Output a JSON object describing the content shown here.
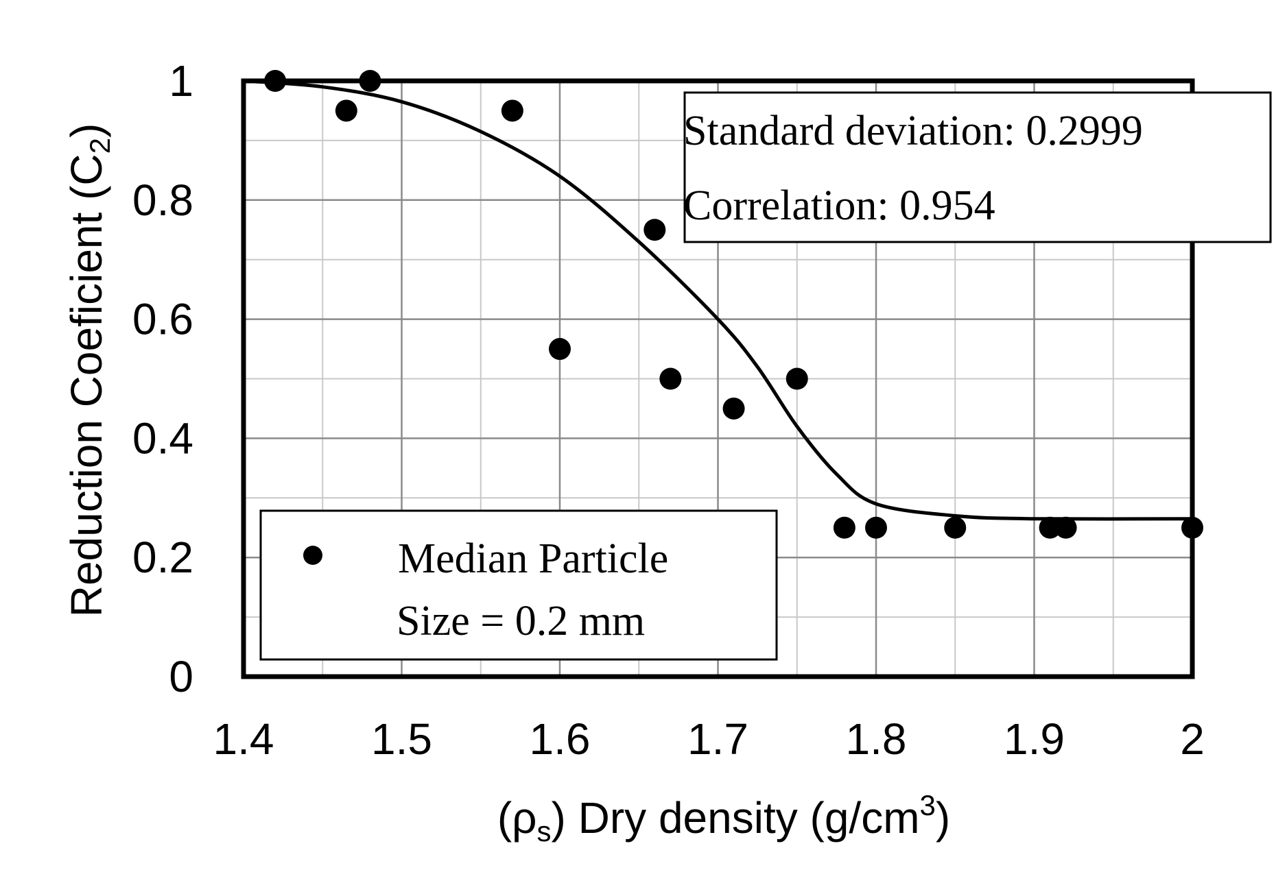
{
  "chart_data": {
    "type": "scatter",
    "title": "",
    "xlabel": {
      "prefix": "(ρ",
      "prefix_sub": "s",
      "main": ") Dry density (g/cm",
      "sup": "3",
      "suffix": ")"
    },
    "ylabel": {
      "main": "Reduction Coeficient (C",
      "sub": "2",
      "suffix": ")"
    },
    "xlim": [
      1.4,
      2.0
    ],
    "ylim": [
      0,
      1
    ],
    "x_ticks": [
      {
        "value": 1.4,
        "label": "1.4"
      },
      {
        "value": 1.5,
        "label": "1.5"
      },
      {
        "value": 1.6,
        "label": "1.6"
      },
      {
        "value": 1.7,
        "label": "1.7"
      },
      {
        "value": 1.8,
        "label": "1.8"
      },
      {
        "value": 1.9,
        "label": "1.9"
      },
      {
        "value": 2.0,
        "label": "2"
      }
    ],
    "y_ticks": [
      {
        "value": 0,
        "label": "0"
      },
      {
        "value": 0.2,
        "label": "0.2"
      },
      {
        "value": 0.4,
        "label": "0.4"
      },
      {
        "value": 0.6,
        "label": "0.6"
      },
      {
        "value": 0.8,
        "label": "0.8"
      },
      {
        "value": 1.0,
        "label": "1"
      }
    ],
    "minor_grid_step_x": 0.05,
    "minor_grid_step_y": 0.1,
    "grid": true,
    "series": [
      {
        "name": "Median Particle Size = 0.2 mm",
        "type": "scatter",
        "points": [
          {
            "x": 1.42,
            "y": 1.0
          },
          {
            "x": 1.465,
            "y": 0.95
          },
          {
            "x": 1.48,
            "y": 1.0
          },
          {
            "x": 1.57,
            "y": 0.95
          },
          {
            "x": 1.6,
            "y": 0.55
          },
          {
            "x": 1.66,
            "y": 0.75
          },
          {
            "x": 1.67,
            "y": 0.5
          },
          {
            "x": 1.71,
            "y": 0.45
          },
          {
            "x": 1.75,
            "y": 0.5
          },
          {
            "x": 1.78,
            "y": 0.25
          },
          {
            "x": 1.8,
            "y": 0.25
          },
          {
            "x": 1.85,
            "y": 0.25
          },
          {
            "x": 1.91,
            "y": 0.25
          },
          {
            "x": 1.92,
            "y": 0.25
          },
          {
            "x": 2.0,
            "y": 0.25
          }
        ]
      },
      {
        "name": "Fitted curve",
        "type": "line",
        "points": [
          {
            "x": 1.4,
            "y": 1.0
          },
          {
            "x": 1.45,
            "y": 0.99
          },
          {
            "x": 1.5,
            "y": 0.965
          },
          {
            "x": 1.55,
            "y": 0.915
          },
          {
            "x": 1.6,
            "y": 0.84
          },
          {
            "x": 1.65,
            "y": 0.73
          },
          {
            "x": 1.7,
            "y": 0.6
          },
          {
            "x": 1.725,
            "y": 0.52
          },
          {
            "x": 1.75,
            "y": 0.42
          },
          {
            "x": 1.775,
            "y": 0.34
          },
          {
            "x": 1.8,
            "y": 0.29
          },
          {
            "x": 1.85,
            "y": 0.27
          },
          {
            "x": 1.9,
            "y": 0.265
          },
          {
            "x": 2.0,
            "y": 0.265
          }
        ]
      }
    ],
    "legend": {
      "position": "bottom-left",
      "line1": "Median Particle",
      "line2": "Size = 0.2 mm"
    },
    "annotation": {
      "position": "top-right",
      "std_label": "Standard deviation: 0.2999",
      "corr_label": "Correlation: 0.954"
    }
  }
}
